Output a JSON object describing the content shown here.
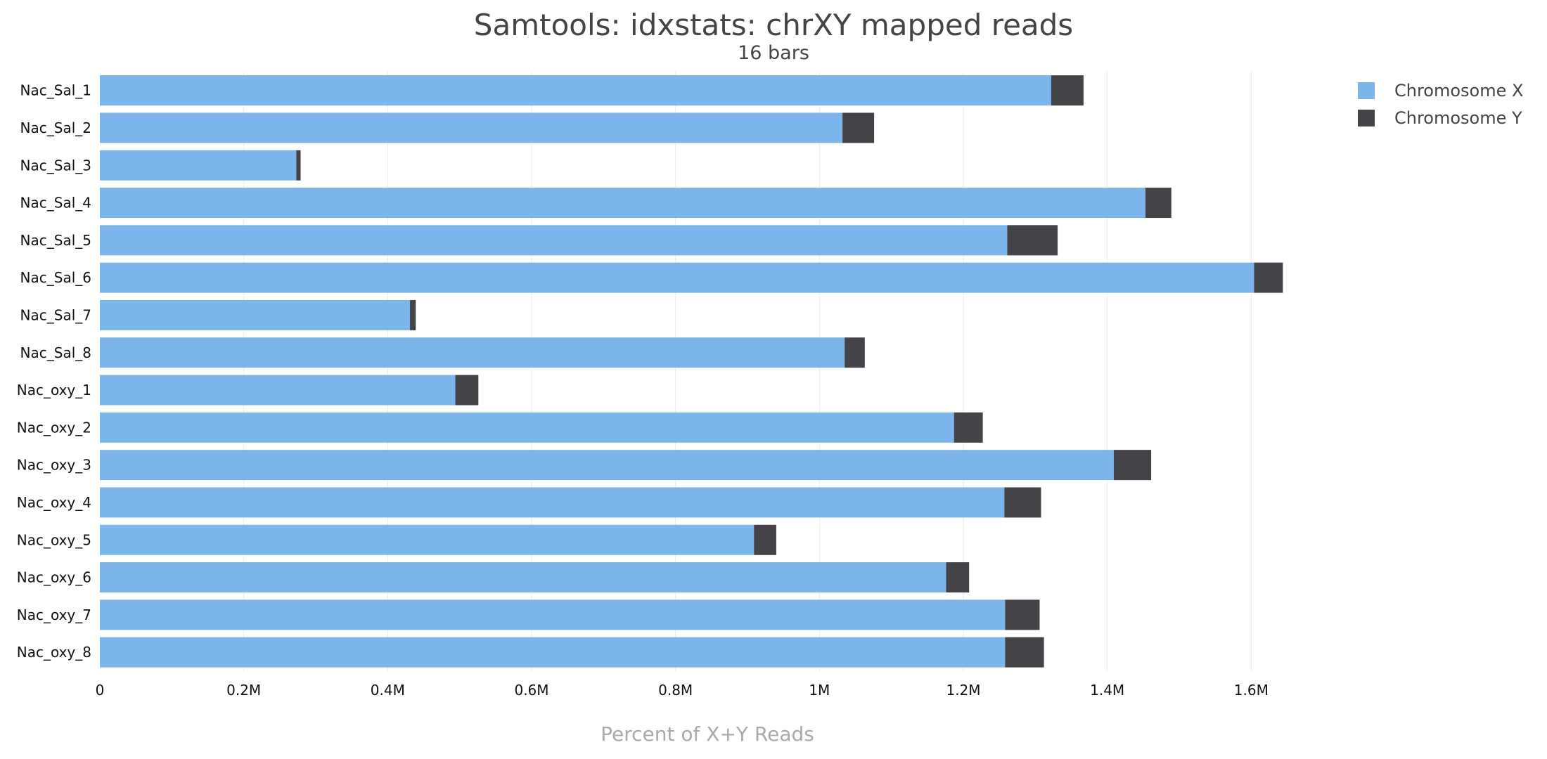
{
  "chart_data": {
    "type": "bar",
    "orientation": "horizontal",
    "stacked": true,
    "title": "Samtools: idxstats: chrXY mapped reads",
    "subtitle": "16 bars",
    "xlabel": "Percent of X+Y Reads",
    "ylabel": "",
    "xlim": [
      0,
      1800000
    ],
    "x_ticks": [
      0,
      200000,
      400000,
      600000,
      800000,
      1000000,
      1200000,
      1400000,
      1600000
    ],
    "x_tick_labels": [
      "0",
      "0.2M",
      "0.4M",
      "0.6M",
      "0.8M",
      "1M",
      "1.2M",
      "1.4M",
      "1.6M"
    ],
    "grid": true,
    "legend_position": "top-right",
    "categories": [
      "Nac_Sal_1",
      "Nac_Sal_2",
      "Nac_Sal_3",
      "Nac_Sal_4",
      "Nac_Sal_5",
      "Nac_Sal_6",
      "Nac_Sal_7",
      "Nac_Sal_8",
      "Nac_oxy_1",
      "Nac_oxy_2",
      "Nac_oxy_3",
      "Nac_oxy_4",
      "Nac_oxy_5",
      "Nac_oxy_6",
      "Nac_oxy_7",
      "Nac_oxy_8"
    ],
    "series": [
      {
        "name": "Chromosome X",
        "color": "#7cb5ec",
        "values": [
          1322000,
          1032000,
          273000,
          1453000,
          1261000,
          1604000,
          431000,
          1035000,
          494000,
          1187000,
          1409000,
          1257000,
          909000,
          1176000,
          1258000,
          1258000
        ]
      },
      {
        "name": "Chromosome Y",
        "color": "#434348",
        "values": [
          45000,
          44000,
          6000,
          36000,
          70000,
          40000,
          8000,
          28000,
          32000,
          40000,
          52000,
          51000,
          31000,
          32000,
          48000,
          54000
        ]
      }
    ]
  }
}
